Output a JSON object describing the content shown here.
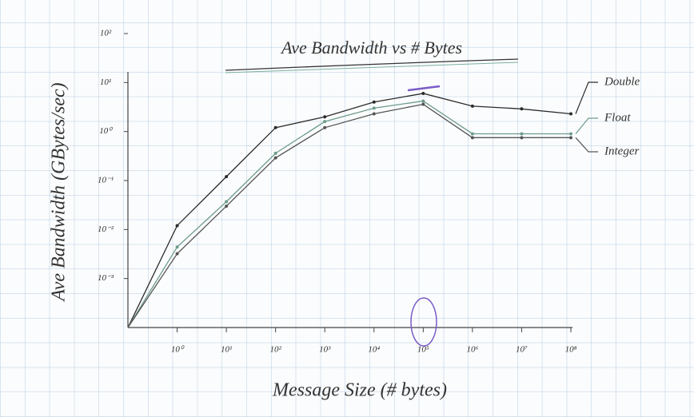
{
  "chart_data": {
    "type": "line",
    "title": "Ave Bandwidth vs # Bytes",
    "x_label": "Message Size (# bytes)",
    "y_label": "Ave Bandwidth (GBytes/sec)",
    "log_x": true,
    "log_y": true,
    "xlim": [
      0.1,
      100000000
    ],
    "ylim": [
      0.0001,
      100
    ],
    "xticks": [
      {
        "value": 1,
        "label": "10⁰"
      },
      {
        "value": 10,
        "label": "10¹"
      },
      {
        "value": 100,
        "label": "10²"
      },
      {
        "value": 1000,
        "label": "10³"
      },
      {
        "value": 10000,
        "label": "10⁴"
      },
      {
        "value": 100000,
        "label": "10⁵"
      },
      {
        "value": 1000000,
        "label": "10⁶"
      },
      {
        "value": 10000000,
        "label": "10⁷"
      },
      {
        "value": 100000000,
        "label": "10⁸"
      }
    ],
    "yticks": [
      {
        "value": 0.001,
        "label": "10⁻³"
      },
      {
        "value": 0.01,
        "label": "10⁻²"
      },
      {
        "value": 0.1,
        "label": "10⁻¹"
      },
      {
        "value": 1,
        "label": "10⁰"
      },
      {
        "value": 10,
        "label": "10¹"
      },
      {
        "value": 100,
        "label": "10²"
      }
    ],
    "x": [
      0.1,
      1,
      10,
      100,
      1000,
      10000,
      100000,
      1000000,
      10000000,
      100000000
    ],
    "series": [
      {
        "name": "Double",
        "color": "#2b2b2b",
        "values": [
          0.0001,
          0.012,
          0.12,
          1.2,
          2,
          4,
          6,
          3.3,
          2.9,
          2.3
        ]
      },
      {
        "name": "Float",
        "color": "#6e9c8c",
        "values": [
          0.0001,
          0.0044,
          0.037,
          0.36,
          1.6,
          3,
          4.2,
          0.9,
          0.9,
          0.9
        ]
      },
      {
        "name": "Integer",
        "color": "#555555",
        "values": [
          0.0001,
          0.0032,
          0.03,
          0.29,
          1.2,
          2.3,
          3.6,
          0.75,
          0.75,
          0.75
        ]
      }
    ]
  }
}
